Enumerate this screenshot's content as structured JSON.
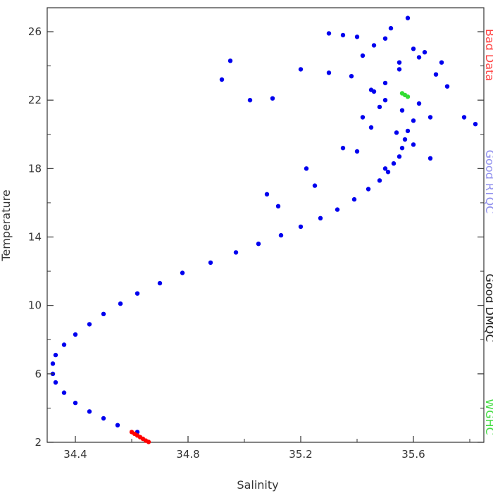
{
  "chart_data": {
    "type": "scatter",
    "xlabel": "Salinity",
    "ylabel": "Temperature",
    "xlim": [
      34.3,
      35.85
    ],
    "ylim": [
      2,
      27.4
    ],
    "xticks": [
      34.4,
      34.8,
      35.2,
      35.6
    ],
    "yticks": [
      2,
      6,
      10,
      14,
      18,
      22,
      26
    ],
    "grid": false,
    "legend_position": "right-edge-vertical",
    "legend": [
      {
        "key": "bad",
        "label": "Bad Data",
        "color": "#ff4040"
      },
      {
        "key": "rtqc",
        "label": "Good RTQC",
        "color": "#9090ee"
      },
      {
        "key": "dmqc",
        "label": "Good DMQC",
        "color": "#222222"
      },
      {
        "key": "wghc",
        "label": "WGHC",
        "color": "#44dd44"
      }
    ],
    "series": [
      {
        "key": "rtqc",
        "color": "#0000ee",
        "x": [
          34.62,
          34.55,
          34.5,
          34.45,
          34.4,
          34.36,
          34.33,
          34.32,
          34.32,
          34.33,
          34.36,
          34.4,
          34.45,
          34.5,
          34.56,
          34.62,
          34.7,
          34.78,
          34.88,
          34.97,
          35.05,
          35.13,
          35.2,
          35.27,
          35.33,
          35.39,
          35.44,
          35.48,
          35.51,
          35.53,
          35.55,
          35.56,
          35.57,
          35.58,
          35.6,
          35.56,
          35.5,
          35.46,
          35.62,
          35.66,
          35.45,
          35.4,
          35.25,
          35.12,
          35.08,
          35.22,
          35.35,
          35.42,
          35.5,
          35.55,
          35.6,
          35.52,
          34.95,
          34.92,
          35.02,
          35.1,
          35.2,
          35.3,
          35.38,
          35.45,
          35.55,
          35.62,
          35.68,
          35.72,
          35.78,
          35.82,
          35.7,
          35.64,
          35.58,
          35.5,
          35.46,
          35.4,
          35.35,
          35.3,
          35.42,
          35.48,
          35.54,
          35.6,
          35.66,
          35.5
        ],
        "y": [
          2.6,
          3.0,
          3.4,
          3.8,
          4.3,
          4.9,
          5.5,
          6.0,
          6.6,
          7.1,
          7.7,
          8.3,
          8.9,
          9.5,
          10.1,
          10.7,
          11.3,
          11.9,
          12.5,
          13.1,
          13.6,
          14.1,
          14.6,
          15.1,
          15.6,
          16.2,
          16.8,
          17.3,
          17.8,
          18.3,
          18.7,
          19.2,
          19.7,
          20.2,
          20.8,
          21.4,
          22.0,
          22.5,
          21.8,
          21.0,
          20.4,
          19.0,
          17.0,
          15.8,
          16.5,
          18.0,
          19.2,
          21.0,
          23.0,
          24.2,
          25.0,
          26.2,
          24.3,
          23.2,
          22.0,
          22.1,
          23.8,
          23.6,
          23.4,
          22.6,
          23.8,
          24.5,
          23.5,
          22.8,
          21.0,
          20.6,
          24.2,
          24.8,
          26.8,
          25.6,
          25.2,
          25.7,
          25.8,
          25.9,
          24.6,
          21.6,
          20.1,
          19.4,
          18.6,
          18.0
        ]
      },
      {
        "key": "bad",
        "color": "#ff0000",
        "x": [
          34.6,
          34.61,
          34.62,
          34.63,
          34.64,
          34.65,
          34.66
        ],
        "y": [
          2.6,
          2.5,
          2.4,
          2.3,
          2.2,
          2.1,
          2.02
        ]
      },
      {
        "key": "wghc",
        "color": "#33dd33",
        "x": [
          35.56,
          35.57,
          35.58
        ],
        "y": [
          22.4,
          22.3,
          22.2
        ]
      }
    ]
  }
}
